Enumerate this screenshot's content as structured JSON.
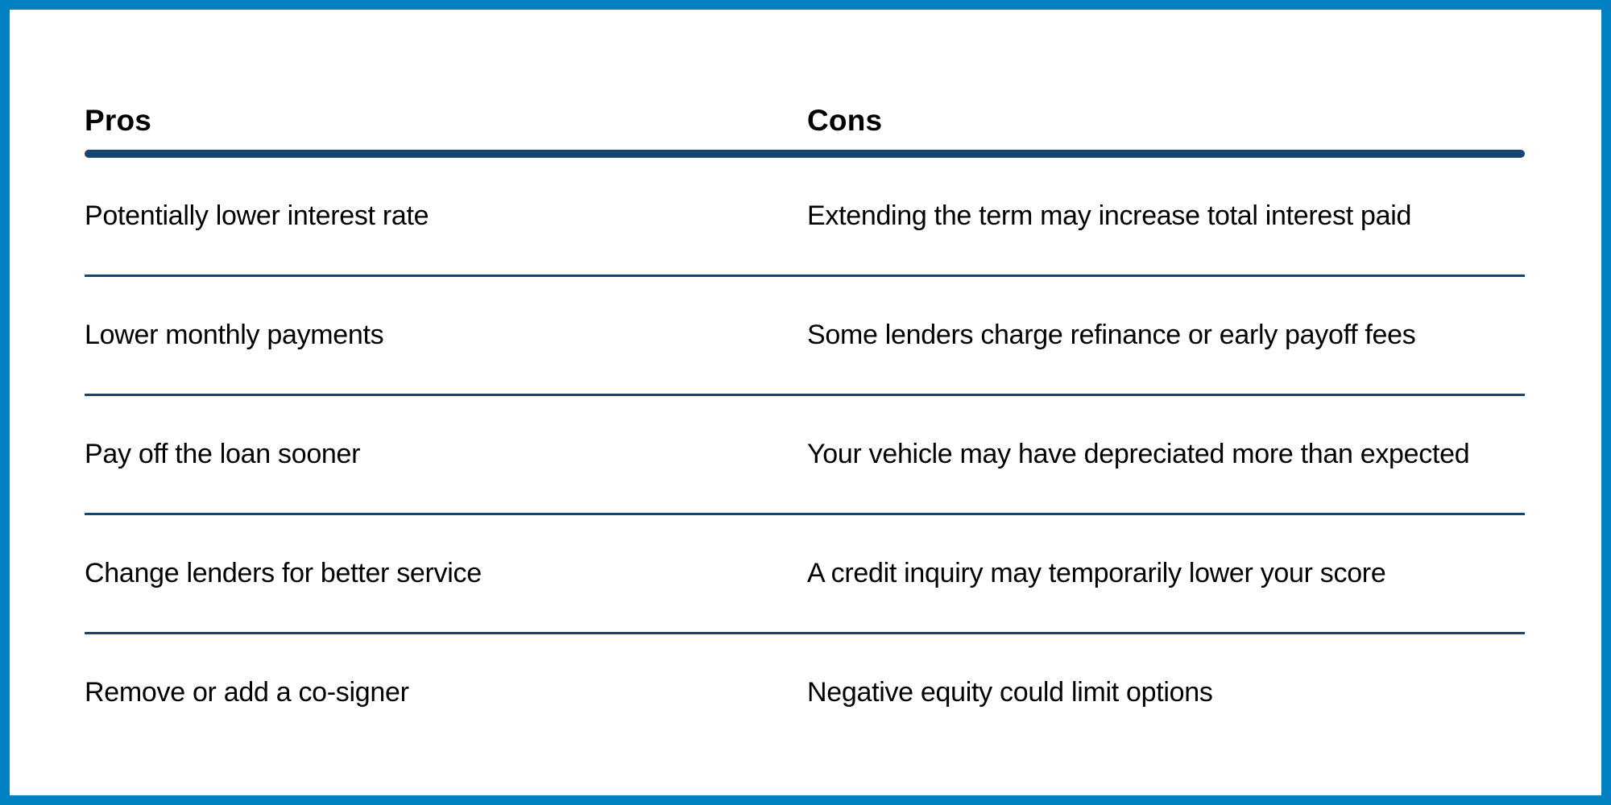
{
  "colors": {
    "frame_border": "#0081C1",
    "rule": "#14466F",
    "text": "#000000",
    "background": "#FFFFFF"
  },
  "table": {
    "headers": [
      "Pros",
      "Cons"
    ],
    "rows": [
      {
        "pro": "Potentially lower interest rate",
        "con": "Extending the term may increase total interest paid"
      },
      {
        "pro": "Lower monthly payments",
        "con": "Some lenders charge refinance or early payoff fees"
      },
      {
        "pro": "Pay off the loan sooner",
        "con": "Your vehicle may have depreciated more than expected"
      },
      {
        "pro": "Change lenders for better service",
        "con": "A credit inquiry may temporarily lower your score"
      },
      {
        "pro": "Remove or add a co-signer",
        "con": "Negative equity could limit options"
      }
    ]
  }
}
